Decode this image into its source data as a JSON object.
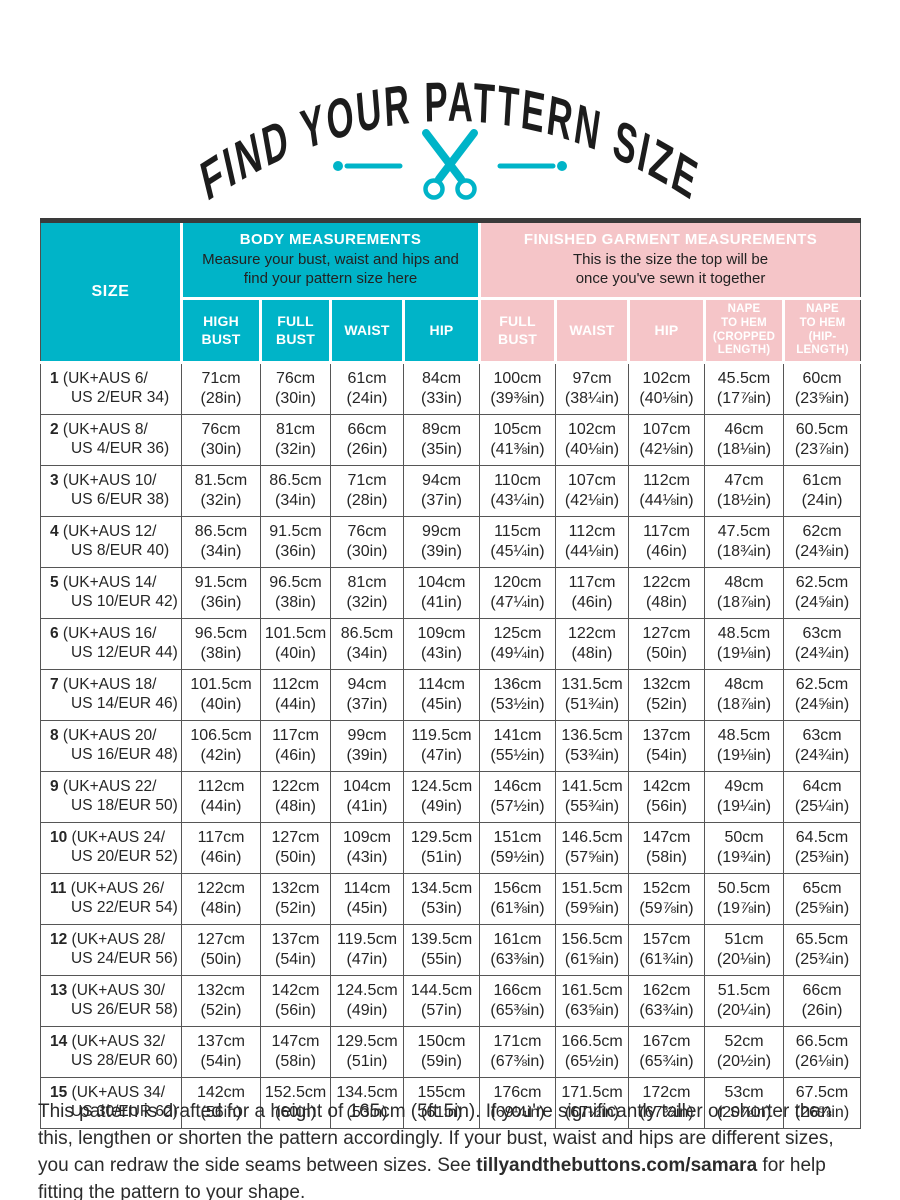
{
  "page": {
    "title": "FIND YOUR PATTERN SIZE",
    "colors": {
      "teal": "#00b4c8",
      "pink": "#f5c5c8",
      "ink": "#1c1c1c",
      "grid": "#565656"
    }
  },
  "table": {
    "size_header": "SIZE",
    "groups": [
      {
        "name": "BODY MEASUREMENTS",
        "subtitle": "Measure your bust, waist and hips and\nfind your pattern size here",
        "columns": [
          "HIGH\nBUST",
          "FULL\nBUST",
          "WAIST",
          "HIP"
        ]
      },
      {
        "name": "FINISHED GARMENT MEASUREMENTS",
        "subtitle": "This is the size the top will be\nonce you've sewn it together",
        "columns": [
          "FULL\nBUST",
          "WAIST",
          "HIP",
          "NAPE\nTO HEM\n(CROPPED\nLENGTH)",
          "NAPE\nTO HEM\n(HIP-\nLENGTH)"
        ]
      }
    ],
    "rows": [
      {
        "size": "1",
        "label1": "(UK+AUS 6/",
        "label2": "US 2/EUR 34)",
        "cells": [
          [
            "71cm",
            "(28in)"
          ],
          [
            "76cm",
            "(30in)"
          ],
          [
            "61cm",
            "(24in)"
          ],
          [
            "84cm",
            "(33in)"
          ],
          [
            "100cm",
            "(39⅜in)"
          ],
          [
            "97cm",
            "(38¼in)"
          ],
          [
            "102cm",
            "(40⅛in)"
          ],
          [
            "45.5cm",
            "(17⅞in)"
          ],
          [
            "60cm",
            "(23⅝in)"
          ]
        ]
      },
      {
        "size": "2",
        "label1": "(UK+AUS 8/",
        "label2": "US 4/EUR 36)",
        "cells": [
          [
            "76cm",
            "(30in)"
          ],
          [
            "81cm",
            "(32in)"
          ],
          [
            "66cm",
            "(26in)"
          ],
          [
            "89cm",
            "(35in)"
          ],
          [
            "105cm",
            "(41⅜in)"
          ],
          [
            "102cm",
            "(40⅛in)"
          ],
          [
            "107cm",
            "(42⅛in)"
          ],
          [
            "46cm",
            "(18⅛in)"
          ],
          [
            "60.5cm",
            "(23⅞in)"
          ]
        ]
      },
      {
        "size": "3",
        "label1": "(UK+AUS 10/",
        "label2": "US 6/EUR 38)",
        "cells": [
          [
            "81.5cm",
            "(32in)"
          ],
          [
            "86.5cm",
            "(34in)"
          ],
          [
            "71cm",
            "(28in)"
          ],
          [
            "94cm",
            "(37in)"
          ],
          [
            "110cm",
            "(43¼in)"
          ],
          [
            "107cm",
            "(42⅛in)"
          ],
          [
            "112cm",
            "(44⅛in)"
          ],
          [
            "47cm",
            "(18½in)"
          ],
          [
            "61cm",
            "(24in)"
          ]
        ]
      },
      {
        "size": "4",
        "label1": "(UK+AUS 12/",
        "label2": "US 8/EUR 40)",
        "cells": [
          [
            "86.5cm",
            "(34in)"
          ],
          [
            "91.5cm",
            "(36in)"
          ],
          [
            "76cm",
            "(30in)"
          ],
          [
            "99cm",
            "(39in)"
          ],
          [
            "115cm",
            "(45¼in)"
          ],
          [
            "112cm",
            "(44⅛in)"
          ],
          [
            "117cm",
            "(46in)"
          ],
          [
            "47.5cm",
            "(18¾in)"
          ],
          [
            "62cm",
            "(24⅜in)"
          ]
        ]
      },
      {
        "size": "5",
        "label1": "(UK+AUS 14/",
        "label2": "US 10/EUR 42)",
        "cells": [
          [
            "91.5cm",
            "(36in)"
          ],
          [
            "96.5cm",
            "(38in)"
          ],
          [
            "81cm",
            "(32in)"
          ],
          [
            "104cm",
            "(41in)"
          ],
          [
            "120cm",
            "(47¼in)"
          ],
          [
            "117cm",
            "(46in)"
          ],
          [
            "122cm",
            "(48in)"
          ],
          [
            "48cm",
            "(18⅞in)"
          ],
          [
            "62.5cm",
            "(24⅝in)"
          ]
        ]
      },
      {
        "size": "6",
        "label1": "(UK+AUS 16/",
        "label2": "US 12/EUR 44)",
        "cells": [
          [
            "96.5cm",
            "(38in)"
          ],
          [
            "101.5cm",
            "(40in)"
          ],
          [
            "86.5cm",
            "(34in)"
          ],
          [
            "109cm",
            "(43in)"
          ],
          [
            "125cm",
            "(49¼in)"
          ],
          [
            "122cm",
            "(48in)"
          ],
          [
            "127cm",
            "(50in)"
          ],
          [
            "48.5cm",
            "(19⅛in)"
          ],
          [
            "63cm",
            "(24¾in)"
          ]
        ]
      },
      {
        "size": "7",
        "label1": "(UK+AUS 18/",
        "label2": "US 14/EUR 46)",
        "cells": [
          [
            "101.5cm",
            "(40in)"
          ],
          [
            "112cm",
            "(44in)"
          ],
          [
            "94cm",
            "(37in)"
          ],
          [
            "114cm",
            "(45in)"
          ],
          [
            "136cm",
            "(53½in)"
          ],
          [
            "131.5cm",
            "(51¾in)"
          ],
          [
            "132cm",
            "(52in)"
          ],
          [
            "48cm",
            "(18⅞in)"
          ],
          [
            "62.5cm",
            "(24⅝in)"
          ]
        ]
      },
      {
        "size": "8",
        "label1": "(UK+AUS 20/",
        "label2": "US 16/EUR 48)",
        "cells": [
          [
            "106.5cm",
            "(42in)"
          ],
          [
            "117cm",
            "(46in)"
          ],
          [
            "99cm",
            "(39in)"
          ],
          [
            "119.5cm",
            "(47in)"
          ],
          [
            "141cm",
            "(55½in)"
          ],
          [
            "136.5cm",
            "(53¾in)"
          ],
          [
            "137cm",
            "(54in)"
          ],
          [
            "48.5cm",
            "(19⅛in)"
          ],
          [
            "63cm",
            "(24¾in)"
          ]
        ]
      },
      {
        "size": "9",
        "label1": "(UK+AUS 22/",
        "label2": "US 18/EUR 50)",
        "cells": [
          [
            "112cm",
            "(44in)"
          ],
          [
            "122cm",
            "(48in)"
          ],
          [
            "104cm",
            "(41in)"
          ],
          [
            "124.5cm",
            "(49in)"
          ],
          [
            "146cm",
            "(57½in)"
          ],
          [
            "141.5cm",
            "(55¾in)"
          ],
          [
            "142cm",
            "(56in)"
          ],
          [
            "49cm",
            "(19¼in)"
          ],
          [
            "64cm",
            "(25¼in)"
          ]
        ]
      },
      {
        "size": "10",
        "label1": "(UK+AUS 24/",
        "label2": "US 20/EUR 52)",
        "cells": [
          [
            "117cm",
            "(46in)"
          ],
          [
            "127cm",
            "(50in)"
          ],
          [
            "109cm",
            "(43in)"
          ],
          [
            "129.5cm",
            "(51in)"
          ],
          [
            "151cm",
            "(59½in)"
          ],
          [
            "146.5cm",
            "(57⅝in)"
          ],
          [
            "147cm",
            "(58in)"
          ],
          [
            "50cm",
            "(19¾in)"
          ],
          [
            "64.5cm",
            "(25⅜in)"
          ]
        ]
      },
      {
        "size": "11",
        "label1": "(UK+AUS 26/",
        "label2": "US 22/EUR 54)",
        "cells": [
          [
            "122cm",
            "(48in)"
          ],
          [
            "132cm",
            "(52in)"
          ],
          [
            "114cm",
            "(45in)"
          ],
          [
            "134.5cm",
            "(53in)"
          ],
          [
            "156cm",
            "(61⅜in)"
          ],
          [
            "151.5cm",
            "(59⅝in)"
          ],
          [
            "152cm",
            "(59⅞in)"
          ],
          [
            "50.5cm",
            "(19⅞in)"
          ],
          [
            "65cm",
            "(25⅝in)"
          ]
        ]
      },
      {
        "size": "12",
        "label1": "(UK+AUS 28/",
        "label2": "US 24/EUR 56)",
        "cells": [
          [
            "127cm",
            "(50in)"
          ],
          [
            "137cm",
            "(54in)"
          ],
          [
            "119.5cm",
            "(47in)"
          ],
          [
            "139.5cm",
            "(55in)"
          ],
          [
            "161cm",
            "(63⅜in)"
          ],
          [
            "156.5cm",
            "(61⅝in)"
          ],
          [
            "157cm",
            "(61¾in)"
          ],
          [
            "51cm",
            "(20⅛in)"
          ],
          [
            "65.5cm",
            "(25¾in)"
          ]
        ]
      },
      {
        "size": "13",
        "label1": "(UK+AUS 30/",
        "label2": "US 26/EUR 58)",
        "cells": [
          [
            "132cm",
            "(52in)"
          ],
          [
            "142cm",
            "(56in)"
          ],
          [
            "124.5cm",
            "(49in)"
          ],
          [
            "144.5cm",
            "(57in)"
          ],
          [
            "166cm",
            "(65⅜in)"
          ],
          [
            "161.5cm",
            "(63⅝in)"
          ],
          [
            "162cm",
            "(63¾in)"
          ],
          [
            "51.5cm",
            "(20¼in)"
          ],
          [
            "66cm",
            "(26in)"
          ]
        ]
      },
      {
        "size": "14",
        "label1": "(UK+AUS 32/",
        "label2": "US 28/EUR 60)",
        "cells": [
          [
            "137cm",
            "(54in)"
          ],
          [
            "147cm",
            "(58in)"
          ],
          [
            "129.5cm",
            "(51in)"
          ],
          [
            "150cm",
            "(59in)"
          ],
          [
            "171cm",
            "(67⅜in)"
          ],
          [
            "166.5cm",
            "(65½in)"
          ],
          [
            "167cm",
            "(65¾in)"
          ],
          [
            "52cm",
            "(20½in)"
          ],
          [
            "66.5cm",
            "(26⅛in)"
          ]
        ]
      },
      {
        "size": "15",
        "label1": "(UK+AUS 34/",
        "label2": "US 30/EUR 62)",
        "cells": [
          [
            "142cm",
            "(56in)"
          ],
          [
            "152.5cm",
            "(60in)"
          ],
          [
            "134.5cm",
            "(53in)"
          ],
          [
            "155cm",
            "(61in)"
          ],
          [
            "176cm",
            "(69¼in)"
          ],
          [
            "171.5cm",
            "(67½in)"
          ],
          [
            "172cm",
            "(67¾in)"
          ],
          [
            "53cm",
            "(20⅞in)"
          ],
          [
            "67.5cm",
            "(26⅝in)"
          ]
        ]
      }
    ]
  },
  "footer": {
    "text_before_link": "This pattern is drafted for a height of 165cm (5ft 5in). If you're significantly taller or shorter than this, lengthen or shorten the pattern accordingly. If your bust, waist and hips are different sizes, you can redraw the side seams between sizes. See ",
    "link_text": "tillyandthebuttons.com/samara",
    "text_after_link": " for help fitting the pattern to your shape."
  }
}
